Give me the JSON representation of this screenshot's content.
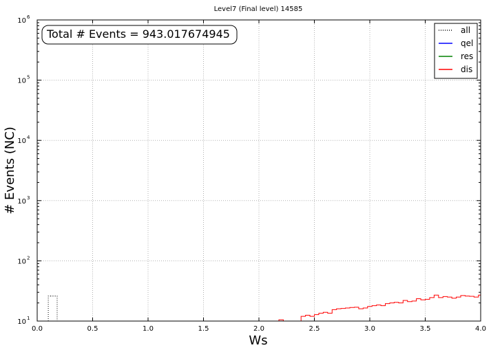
{
  "chart_data": {
    "type": "line",
    "title": "Level7 (Final level) 14585",
    "xlabel": "Ws",
    "ylabel": "# Events (NC)",
    "xlim": [
      0.0,
      4.0
    ],
    "ylim": [
      10,
      1000000
    ],
    "yscale": "log",
    "grid": true,
    "legend_position": "top-right",
    "x_ticks": [
      "0.0",
      "0.5",
      "1.0",
      "1.5",
      "2.0",
      "2.5",
      "3.0",
      "3.5",
      "4.0"
    ],
    "x_tick_values": [
      0.0,
      0.5,
      1.0,
      1.5,
      2.0,
      2.5,
      3.0,
      3.5,
      4.0
    ],
    "y_ticks": [
      {
        "value": 10,
        "base": "10",
        "exp": "1"
      },
      {
        "value": 100,
        "base": "10",
        "exp": "2"
      },
      {
        "value": 1000,
        "base": "10",
        "exp": "3"
      },
      {
        "value": 10000,
        "base": "10",
        "exp": "4"
      },
      {
        "value": 100000,
        "base": "10",
        "exp": "5"
      },
      {
        "value": 1000000,
        "base": "10",
        "exp": "6"
      }
    ],
    "annotation": "Total # Events = 943.017674945",
    "series": [
      {
        "name": "all",
        "color": "#000000",
        "style": "dotted",
        "edges": [
          0.1,
          0.12,
          0.14,
          0.16,
          0.18
        ],
        "values": [
          26,
          26,
          26,
          26
        ]
      },
      {
        "name": "qel",
        "color": "#0000ff",
        "style": "solid",
        "edges": [],
        "values": []
      },
      {
        "name": "res",
        "color": "#008000",
        "style": "solid",
        "edges": [],
        "values": []
      },
      {
        "name": "dis",
        "color": "#ff0000",
        "style": "solid",
        "edges": [
          2.18,
          2.22,
          2.26,
          2.3,
          2.34,
          2.38,
          2.42,
          2.46,
          2.5,
          2.54,
          2.58,
          2.62,
          2.66,
          2.7,
          2.74,
          2.78,
          2.82,
          2.86,
          2.9,
          2.94,
          2.98,
          3.02,
          3.06,
          3.1,
          3.14,
          3.18,
          3.22,
          3.26,
          3.3,
          3.34,
          3.38,
          3.42,
          3.46,
          3.5,
          3.54,
          3.58,
          3.62,
          3.66,
          3.7,
          3.74,
          3.78,
          3.82,
          3.86,
          3.9,
          3.94,
          3.98,
          4.0
        ],
        "values": [
          10.5,
          10.0,
          10.0,
          10.0,
          10.0,
          12.0,
          12.5,
          12.0,
          12.8,
          13.5,
          14.0,
          13.5,
          15.5,
          16.0,
          16.2,
          16.5,
          16.8,
          17.0,
          16.0,
          16.5,
          17.5,
          18.0,
          18.5,
          18.0,
          19.5,
          20.0,
          20.5,
          20.0,
          22.0,
          21.0,
          21.5,
          23.5,
          22.5,
          23.0,
          24.5,
          27.0,
          24.5,
          25.5,
          25.0,
          24.0,
          25.0,
          26.5,
          26.0,
          25.8,
          25.0,
          27.0
        ]
      }
    ]
  }
}
